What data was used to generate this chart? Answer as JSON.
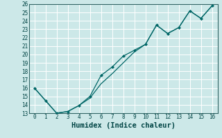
{
  "xlabel": "Humidex (Indice chaleur)",
  "bg_color": "#cce8e8",
  "grid_color": "#aacccc",
  "line_color": "#006666",
  "xlim": [
    -0.5,
    16.5
  ],
  "ylim": [
    13,
    26
  ],
  "xticks": [
    0,
    1,
    2,
    3,
    4,
    5,
    6,
    7,
    8,
    9,
    10,
    11,
    12,
    13,
    14,
    15,
    16
  ],
  "yticks": [
    13,
    14,
    15,
    16,
    17,
    18,
    19,
    20,
    21,
    22,
    23,
    24,
    25,
    26
  ],
  "line1_x": [
    0,
    1,
    2,
    3,
    4,
    5,
    6,
    7,
    8,
    9,
    10,
    11,
    12,
    13,
    14,
    15,
    16
  ],
  "line1_y": [
    16,
    14.5,
    13,
    13.2,
    13.9,
    15.0,
    17.5,
    18.5,
    19.8,
    20.5,
    21.2,
    23.5,
    22.5,
    23.2,
    25.2,
    24.3,
    25.8
  ],
  "line2_x": [
    0,
    1,
    2,
    3,
    4,
    5,
    6,
    7,
    8,
    9,
    10,
    11,
    12,
    13,
    14,
    15,
    16
  ],
  "line2_y": [
    16,
    14.5,
    13,
    13.2,
    13.9,
    14.8,
    16.5,
    17.7,
    19.0,
    20.3,
    21.2,
    23.5,
    22.5,
    23.2,
    25.2,
    24.3,
    25.8
  ],
  "font_family": "monospace",
  "tick_fontsize": 5.5,
  "xlabel_fontsize": 7.5
}
